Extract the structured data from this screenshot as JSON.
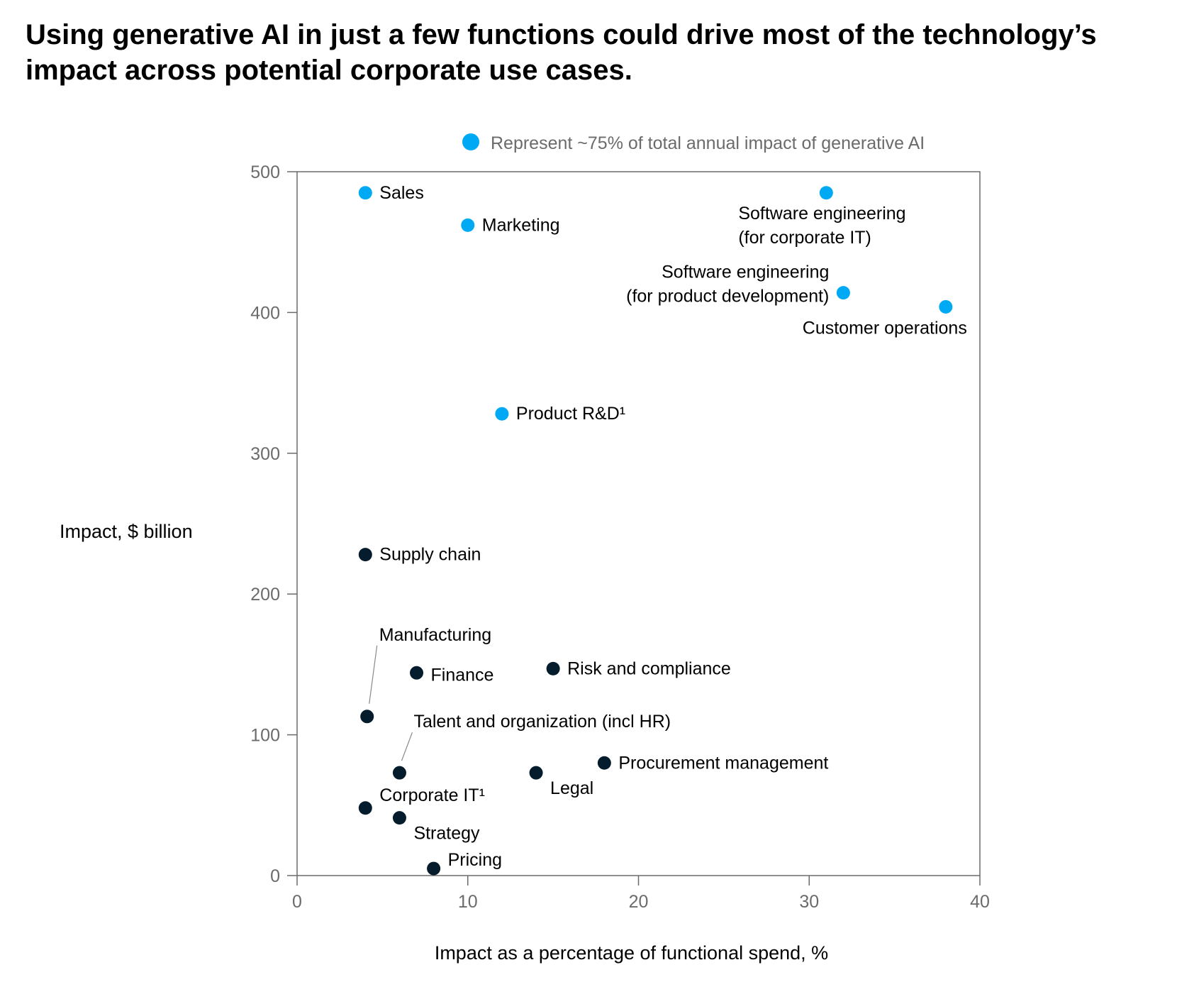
{
  "title_lines": [
    "Using generative AI in just a few functions could drive most of the technology’s",
    "impact across potential corporate use cases."
  ],
  "colors": {
    "highlight": "#00a9f4",
    "other": "#051c2c",
    "axis": "#6b6b6b",
    "leader": "#888888"
  },
  "chart_data": {
    "type": "scatter",
    "xlabel": "Impact as a percentage of functional spend, %",
    "ylabel": "Impact, $ billion",
    "xlim": [
      0,
      40
    ],
    "ylim": [
      0,
      500
    ],
    "xticks": [
      "0",
      "10",
      "20",
      "30",
      "40"
    ],
    "yticks": [
      "0",
      "100",
      "200",
      "300",
      "400",
      "500"
    ],
    "xtick_values": [
      0,
      10,
      20,
      30,
      40
    ],
    "ytick_values": [
      0,
      100,
      200,
      300,
      400,
      500
    ],
    "grid": false,
    "legend": {
      "text": "Represent ~75% of total annual impact of generative AI",
      "placement": "top-right"
    },
    "points": [
      {
        "name": "sales",
        "label": [
          "Sales"
        ],
        "x": 4,
        "y": 485,
        "highlight": true
      },
      {
        "name": "marketing",
        "label": [
          "Marketing"
        ],
        "x": 10,
        "y": 462,
        "highlight": true
      },
      {
        "name": "software-engineering-corporate-it",
        "label": [
          "Software engineering",
          "(for corporate IT)"
        ],
        "x": 31,
        "y": 485,
        "highlight": true
      },
      {
        "name": "software-engineering-product-development",
        "label": [
          "Software engineering",
          "(for product development)"
        ],
        "x": 32,
        "y": 414,
        "highlight": true
      },
      {
        "name": "customer-operations",
        "label": [
          "Customer operations"
        ],
        "x": 38,
        "y": 404,
        "highlight": true
      },
      {
        "name": "product-rnd",
        "label": [
          "Product R&D¹"
        ],
        "x": 12,
        "y": 328,
        "highlight": true
      },
      {
        "name": "supply-chain",
        "label": [
          "Supply chain"
        ],
        "x": 4,
        "y": 228,
        "highlight": false
      },
      {
        "name": "manufacturing",
        "label": [
          "Manufacturing"
        ],
        "x": 4.1,
        "y": 113,
        "highlight": false
      },
      {
        "name": "finance",
        "label": [
          "Finance"
        ],
        "x": 7,
        "y": 144,
        "highlight": false
      },
      {
        "name": "risk-and-compliance",
        "label": [
          "Risk and compliance"
        ],
        "x": 15,
        "y": 147,
        "highlight": false
      },
      {
        "name": "talent-and-organization",
        "label": [
          "Talent and organization (incl HR)"
        ],
        "x": 6,
        "y": 73,
        "highlight": false
      },
      {
        "name": "legal",
        "label": [
          "Legal"
        ],
        "x": 14,
        "y": 73,
        "highlight": false
      },
      {
        "name": "procurement-management",
        "label": [
          "Procurement management"
        ],
        "x": 18,
        "y": 80,
        "highlight": false
      },
      {
        "name": "corporate-it",
        "label": [
          "Corporate IT¹"
        ],
        "x": 4,
        "y": 48,
        "highlight": false
      },
      {
        "name": "strategy",
        "label": [
          "Strategy"
        ],
        "x": 6,
        "y": 41,
        "highlight": false
      },
      {
        "name": "pricing",
        "label": [
          "Pricing"
        ],
        "x": 8,
        "y": 5,
        "highlight": false
      }
    ]
  }
}
